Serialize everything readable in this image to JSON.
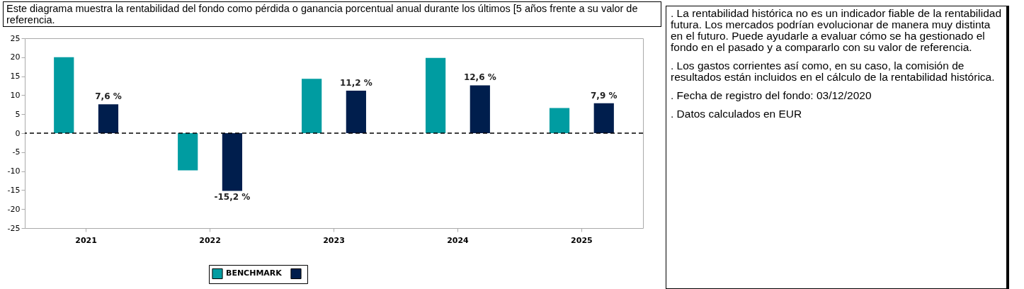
{
  "chart_data": {
    "type": "bar",
    "title": "Este diagrama muestra la rentabilidad del fondo como pérdida o ganancia porcentual anual durante los últimos [5 años frente a su valor de referencia.",
    "categories": [
      "2021",
      "2022",
      "2023",
      "2024",
      "2025"
    ],
    "series": [
      {
        "name": "BENCHMARK",
        "color": "#009ca1",
        "values": [
          20.0,
          -9.8,
          14.3,
          19.8,
          6.6
        ]
      },
      {
        "color": "#001e4d",
        "values": [
          7.6,
          -15.2,
          11.2,
          12.6,
          7.9
        ],
        "value_labels": [
          "7,6 %",
          "-15,2 %",
          "11,2 %",
          "12,6 %",
          "7,9 %"
        ]
      }
    ],
    "ylim": [
      -25,
      25
    ],
    "yticks": [
      -25,
      -20,
      -15,
      -10,
      -5,
      0,
      5,
      10,
      15,
      20,
      25
    ],
    "grid": false,
    "legend": "bottom",
    "ref_lines": [
      {
        "axis": "y",
        "value": 0,
        "color": "#000000",
        "line_style": "dashed"
      }
    ],
    "annotations": [
      ". La rentabilidad histórica no es un indicador fiable de la rentabilidad futura. Los mercados podrían evolucionar de manera muy distinta en el futuro. Puede ayudarle a evaluar cómo se ha gestionado el fondo en el pasado y a compararlo con su valor de referencia.",
      ". Los gastos corrientes así como, en su caso, la comisión de resultados están incluidos en el cálculo de la rentabilidad histórica.",
      ". Fecha de registro del fondo: 03/12/2020",
      ". Datos calculados en EUR"
    ]
  }
}
